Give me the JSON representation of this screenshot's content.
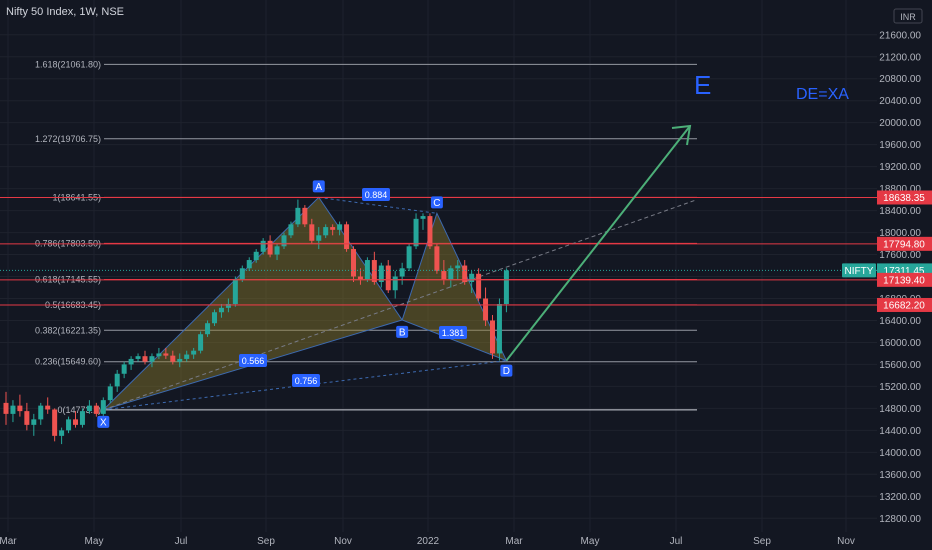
{
  "header": {
    "title": "Nifty 50 Index, 1W, NSE",
    "currency": "INR"
  },
  "colors": {
    "background": "#131722",
    "up": "#26a69a",
    "down": "#ef5350",
    "pattern_fill": "#8a7a2a",
    "pattern_line": "#3d6ab0",
    "level_red": "#e53945",
    "level_gray": "#9598a1",
    "arrow": "#4caf78",
    "annotation_blue": "#2962ff",
    "nifty_tag": "#26a69a"
  },
  "annotations": {
    "big_letter": "E",
    "note": "DE=XA"
  },
  "chart_data": {
    "type": "candlestick",
    "y_axis": {
      "ticks": [
        "21600.00",
        "21200.00",
        "20800.00",
        "20400.00",
        "20000.00",
        "19600.00",
        "19200.00",
        "18800.00",
        "18400.00",
        "18000.00",
        "17600.00",
        "17200.00",
        "16800.00",
        "16400.00",
        "16000.00",
        "15600.00",
        "15200.00",
        "14800.00",
        "14400.00",
        "14000.00",
        "13600.00",
        "13200.00",
        "12800.00"
      ],
      "range": [
        12550,
        21960
      ]
    },
    "x_axis": {
      "ticks": [
        "Mar",
        "May",
        "Jul",
        "Sep",
        "Nov",
        "2022",
        "Mar",
        "May",
        "Jul",
        "Sep",
        "Nov"
      ]
    },
    "fib_levels": [
      {
        "label": "1.618(21061.80)",
        "value": 21061.8
      },
      {
        "label": "1.272(19706.75)",
        "value": 19706.75
      },
      {
        "label": "1(18641.55)",
        "value": 18641.55
      },
      {
        "label": "0.786(17803.50)",
        "value": 17803.5
      },
      {
        "label": "0.618(17145.55)",
        "value": 17145.55
      },
      {
        "label": "0.5(16683.45)",
        "value": 16683.45
      },
      {
        "label": "0.382(16221.35)",
        "value": 16221.35
      },
      {
        "label": "0.236(15649.60)",
        "value": 15649.6
      },
      {
        "label": "0(14773...)",
        "value": 14773
      }
    ],
    "price_tags": [
      {
        "label": "18638.35",
        "value": 18638.35,
        "kind": "level"
      },
      {
        "label": "17794.80",
        "value": 17794.8,
        "kind": "level"
      },
      {
        "label": "17311.45",
        "value": 17311.45,
        "kind": "last",
        "symbol": "NIFTY"
      },
      {
        "label": "17139.40",
        "value": 17139.4,
        "kind": "level"
      },
      {
        "label": "16682.20",
        "value": 16682.2,
        "kind": "level"
      }
    ],
    "pattern_points": [
      {
        "label": "X",
        "value": 14773
      },
      {
        "label": "A",
        "value": 18641
      },
      {
        "label": "B",
        "value": 16410
      },
      {
        "label": "C",
        "value": 18350
      },
      {
        "label": "D",
        "value": 15670
      }
    ],
    "ratios": [
      {
        "label": "0.884",
        "between": "A-C"
      },
      {
        "label": "0.566",
        "between": "X-B"
      },
      {
        "label": "1.381",
        "between": "B-D"
      },
      {
        "label": "0.756",
        "between": "X-D"
      }
    ],
    "candles": [
      [
        14900,
        15100,
        14500,
        14700
      ],
      [
        14700,
        14950,
        14550,
        14850
      ],
      [
        14850,
        15050,
        14650,
        14750
      ],
      [
        14750,
        14900,
        14400,
        14500
      ],
      [
        14500,
        14700,
        14300,
        14600
      ],
      [
        14600,
        14900,
        14500,
        14850
      ],
      [
        14850,
        15000,
        14700,
        14780
      ],
      [
        14780,
        14800,
        14200,
        14300
      ],
      [
        14300,
        14450,
        14150,
        14400
      ],
      [
        14400,
        14650,
        14350,
        14600
      ],
      [
        14600,
        14750,
        14450,
        14500
      ],
      [
        14500,
        14800,
        14450,
        14750
      ],
      [
        14750,
        14950,
        14700,
        14850
      ],
      [
        14850,
        14900,
        14650,
        14700
      ],
      [
        14700,
        15000,
        14650,
        14950
      ],
      [
        14950,
        15250,
        14900,
        15200
      ],
      [
        15200,
        15500,
        15100,
        15430
      ],
      [
        15430,
        15650,
        15350,
        15600
      ],
      [
        15600,
        15750,
        15500,
        15700
      ],
      [
        15700,
        15800,
        15650,
        15750
      ],
      [
        15750,
        15850,
        15600,
        15650
      ],
      [
        15650,
        15800,
        15550,
        15750
      ],
      [
        15750,
        15900,
        15700,
        15800
      ],
      [
        15800,
        15900,
        15700,
        15760
      ],
      [
        15760,
        15850,
        15600,
        15650
      ],
      [
        15650,
        15800,
        15550,
        15700
      ],
      [
        15700,
        15850,
        15650,
        15780
      ],
      [
        15780,
        15900,
        15700,
        15850
      ],
      [
        15850,
        16200,
        15800,
        16150
      ],
      [
        16150,
        16400,
        16100,
        16350
      ],
      [
        16350,
        16600,
        16300,
        16550
      ],
      [
        16550,
        16700,
        16450,
        16630
      ],
      [
        16630,
        16800,
        16550,
        16700
      ],
      [
        16700,
        17200,
        16650,
        17150
      ],
      [
        17150,
        17400,
        17100,
        17350
      ],
      [
        17350,
        17550,
        17300,
        17500
      ],
      [
        17500,
        17700,
        17450,
        17650
      ],
      [
        17650,
        17900,
        17600,
        17850
      ],
      [
        17850,
        17950,
        17550,
        17600
      ],
      [
        17600,
        17800,
        17500,
        17750
      ],
      [
        17750,
        18000,
        17700,
        17950
      ],
      [
        17950,
        18200,
        17900,
        18150
      ],
      [
        18150,
        18600,
        18100,
        18450
      ],
      [
        18450,
        18500,
        18100,
        18150
      ],
      [
        18150,
        18250,
        17800,
        17850
      ],
      [
        17850,
        18100,
        17700,
        17950
      ],
      [
        17950,
        18150,
        17900,
        18100
      ],
      [
        18100,
        18150,
        17950,
        18050
      ],
      [
        18050,
        18200,
        17950,
        18150
      ],
      [
        18150,
        18200,
        17650,
        17700
      ],
      [
        17700,
        17750,
        17100,
        17200
      ],
      [
        17200,
        17350,
        17050,
        17150
      ],
      [
        17150,
        17550,
        17100,
        17500
      ],
      [
        17500,
        17650,
        17050,
        17100
      ],
      [
        17100,
        17450,
        17000,
        17400
      ],
      [
        17400,
        17500,
        16900,
        16950
      ],
      [
        16950,
        17300,
        16800,
        17200
      ],
      [
        17200,
        17450,
        17050,
        17350
      ],
      [
        17350,
        17800,
        17300,
        17750
      ],
      [
        17750,
        18350,
        17700,
        18250
      ],
      [
        18250,
        18350,
        18050,
        18300
      ],
      [
        18300,
        18350,
        17700,
        17750
      ],
      [
        17750,
        17800,
        17250,
        17300
      ],
      [
        17300,
        17500,
        17050,
        17150
      ],
      [
        17150,
        17400,
        17000,
        17350
      ],
      [
        17350,
        17500,
        17150,
        17400
      ],
      [
        17400,
        17500,
        17050,
        17100
      ],
      [
        17100,
        17300,
        16900,
        17250
      ],
      [
        17250,
        17350,
        16750,
        16800
      ],
      [
        16800,
        17000,
        16300,
        16400
      ],
      [
        16400,
        16500,
        15700,
        15800
      ],
      [
        15800,
        16800,
        15670,
        16700
      ],
      [
        16700,
        17350,
        16550,
        17311.45
      ]
    ]
  }
}
